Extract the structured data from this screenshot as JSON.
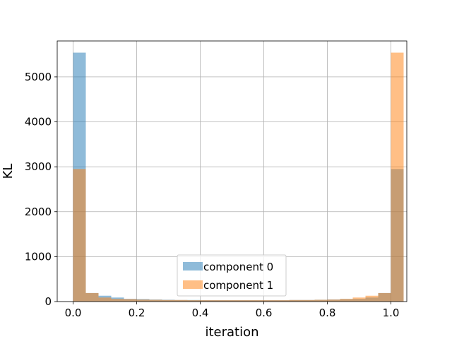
{
  "chart_data": {
    "type": "bar",
    "xlabel": "iteration",
    "ylabel": "KL",
    "xlim": [
      -0.05,
      1.05
    ],
    "ylim": [
      0,
      5800
    ],
    "xticks": [
      0.0,
      0.2,
      0.4,
      0.6,
      0.8,
      1.0
    ],
    "xtick_labels": [
      "0.0",
      "0.2",
      "0.4",
      "0.6",
      "0.8",
      "1.0"
    ],
    "yticks": [
      0,
      1000,
      2000,
      3000,
      4000,
      5000
    ],
    "ytick_labels": [
      "0",
      "1000",
      "2000",
      "3000",
      "4000",
      "5000"
    ],
    "grid": true,
    "legend_position": "lower center",
    "bin_edges": [
      0.0,
      0.04,
      0.08,
      0.12,
      0.16,
      0.2,
      0.24,
      0.28,
      0.32,
      0.36,
      0.4,
      0.44,
      0.48,
      0.52,
      0.56,
      0.6,
      0.64,
      0.68,
      0.72,
      0.76,
      0.8,
      0.84,
      0.88,
      0.92,
      0.96,
      1.0
    ],
    "series": [
      {
        "name": "component 0",
        "color": "#1f77b4",
        "opacity": 0.5,
        "values": [
          5540,
          190,
          130,
          90,
          60,
          55,
          45,
          40,
          35,
          35,
          30,
          30,
          30,
          30,
          30,
          30,
          30,
          35,
          35,
          40,
          45,
          55,
          60,
          90,
          190,
          2950
        ]
      },
      {
        "name": "component 1",
        "color": "#ff7f0e",
        "opacity": 0.5,
        "values": [
          2950,
          190,
          90,
          60,
          55,
          45,
          40,
          35,
          35,
          30,
          30,
          30,
          30,
          30,
          30,
          30,
          30,
          35,
          35,
          40,
          45,
          60,
          90,
          130,
          190,
          5540
        ]
      }
    ]
  }
}
